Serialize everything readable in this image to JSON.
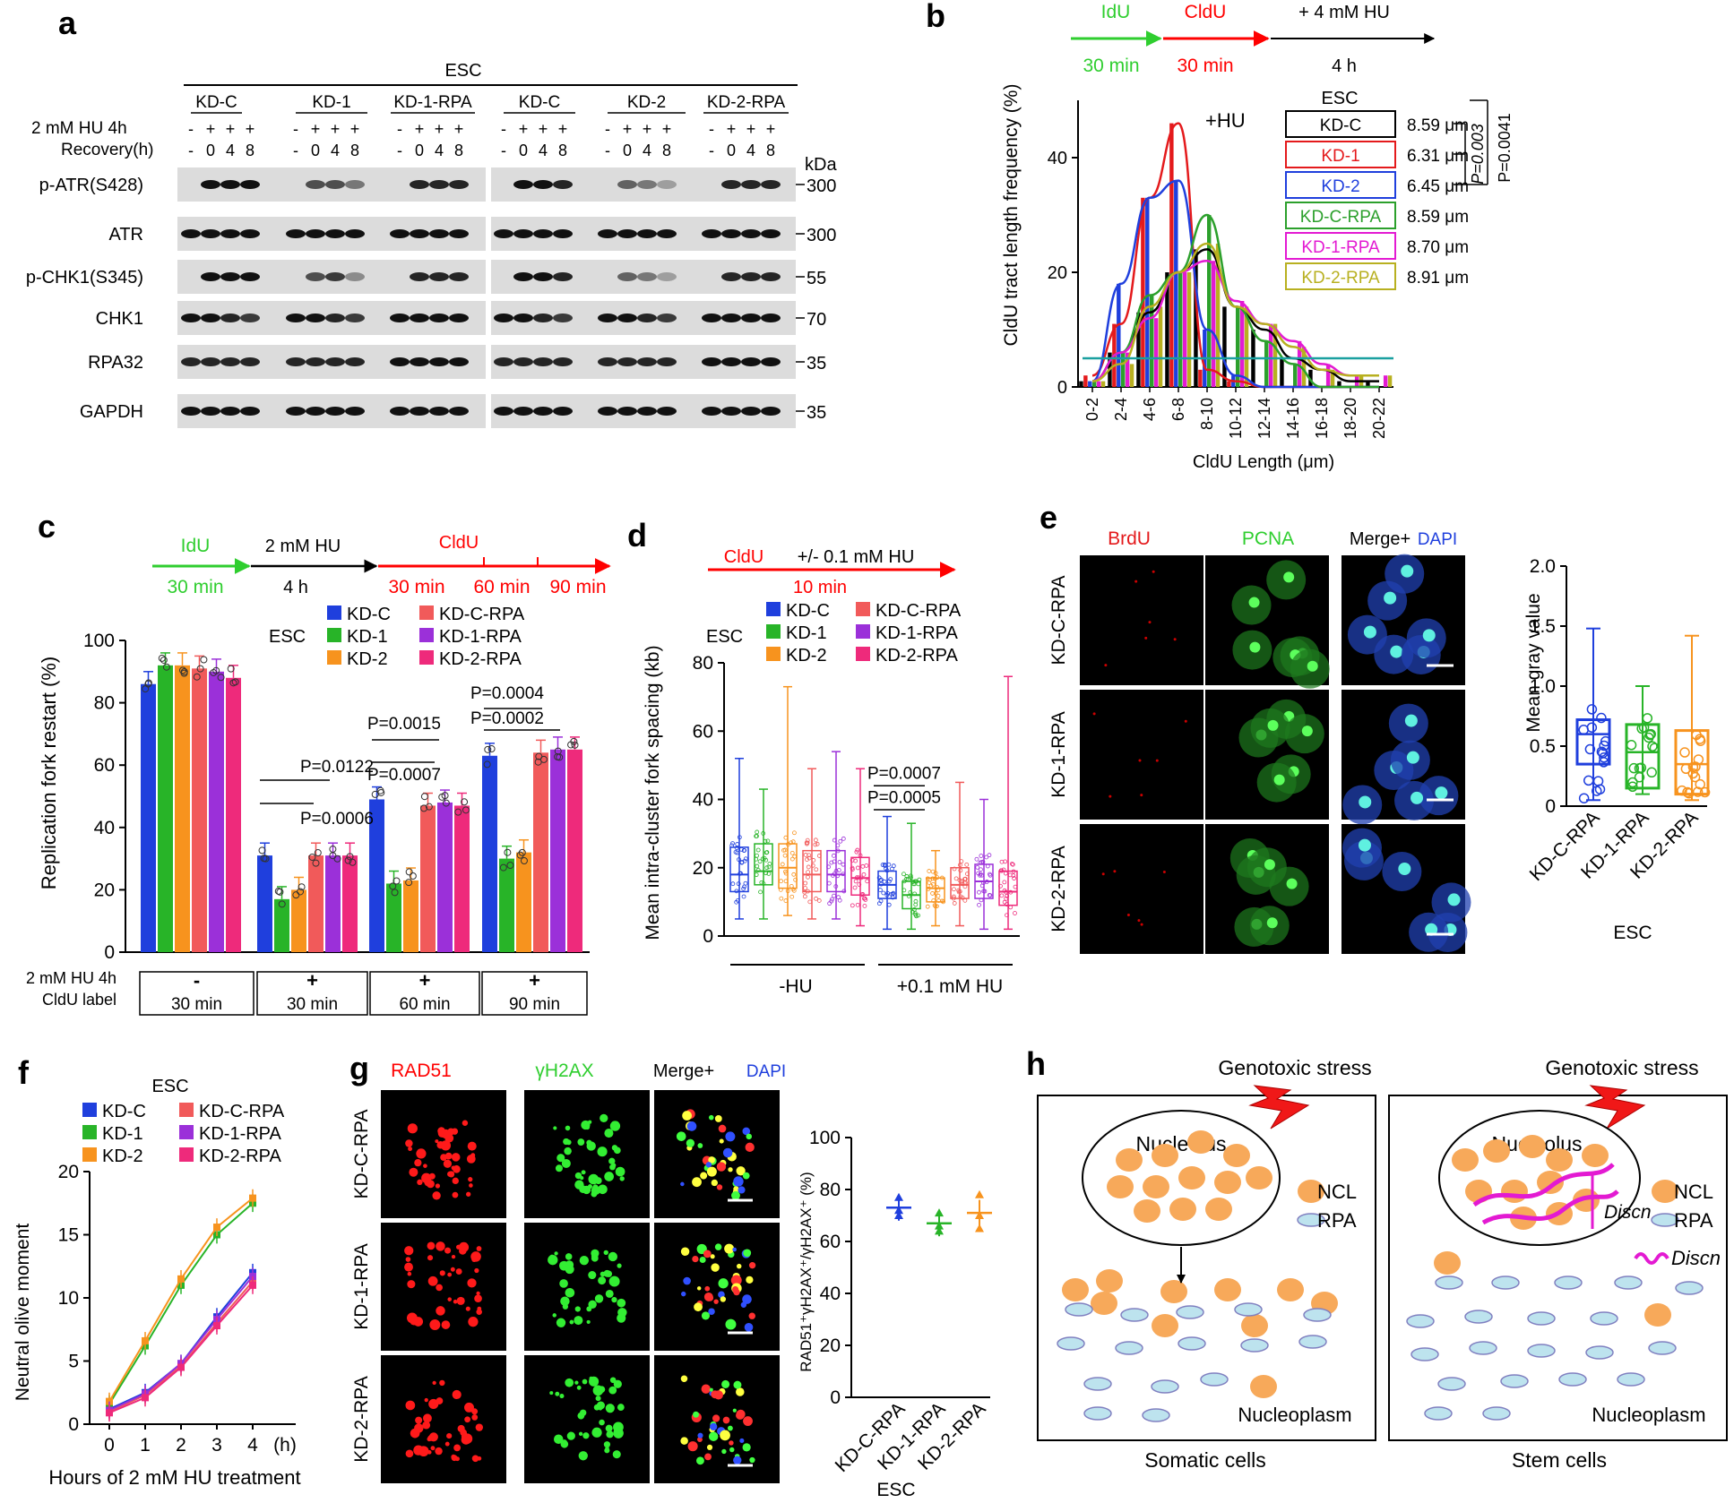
{
  "panel_letters": [
    "a",
    "b",
    "c",
    "d",
    "e",
    "f",
    "g",
    "h"
  ],
  "panel_a": {
    "esc": "ESC",
    "groups": [
      "KD-C",
      "KD-1",
      "KD-1-RPA",
      "KD-C",
      "KD-2",
      "KD-2-RPA"
    ],
    "hu_label": "2 mM HU 4h",
    "recovery_label": "Recovery(h)",
    "hu_signs": [
      "-",
      "+",
      "+",
      "+"
    ],
    "recovery_values": [
      "-",
      "0",
      "4",
      "8"
    ],
    "kda": "kDa",
    "rows": [
      "p-ATR(S428)",
      "ATR",
      "p-CHK1(S345)",
      "CHK1",
      "RPA32",
      "GAPDH"
    ],
    "markers": [
      "300",
      "300",
      "55",
      "70",
      "35",
      "35"
    ]
  },
  "panel_b": {
    "scheme": {
      "idu": "IdU",
      "cldu": "CldU",
      "hu": "+ 4 mM HU",
      "idu_time": "30 min",
      "cldu_time": "30 min",
      "hu_time": "4 h"
    },
    "chart_data": {
      "type": "bar",
      "title": "+HU",
      "ylabel": "CldU tract length frequency (%)",
      "xlabel": "CldU Length (μm)",
      "ylim": [
        0,
        50
      ],
      "yticks": [
        0,
        20,
        40
      ],
      "categories": [
        "0-2",
        "2-4",
        "4-6",
        "6-8",
        "8-10",
        "10-12",
        "12-14",
        "14-16",
        "16-18",
        "18-20",
        "20-22"
      ],
      "series": [
        {
          "name": "KD-C",
          "color": "#000000",
          "mean": "8.59 μm",
          "values": [
            1,
            6,
            13,
            20,
            24,
            14,
            10,
            5,
            3,
            1,
            1
          ]
        },
        {
          "name": "KD-1",
          "color": "#e41a1c",
          "mean": "6.31 μm",
          "values": [
            2,
            11,
            33,
            46,
            3,
            1,
            0,
            0,
            0,
            0,
            0
          ]
        },
        {
          "name": "KD-2",
          "color": "#1f3fdd",
          "mean": "6.45 μm",
          "values": [
            1,
            18,
            33,
            36,
            10,
            2,
            0,
            0,
            0,
            0,
            0
          ]
        },
        {
          "name": "KD-C-RPA",
          "color": "#2ca02c",
          "mean": "8.59 μm",
          "values": [
            1,
            6,
            16,
            20,
            30,
            14,
            8,
            4,
            0,
            0,
            0
          ]
        },
        {
          "name": "KD-1-RPA",
          "color": "#e31ad2",
          "mean": "8.70 μm",
          "values": [
            1,
            6,
            12,
            20,
            22,
            15,
            11,
            8,
            4,
            2,
            2
          ]
        },
        {
          "name": "KD-2-RPA",
          "color": "#b8b020",
          "mean": "8.91 μm",
          "values": [
            1,
            4,
            14,
            20,
            25,
            14,
            11,
            7,
            3,
            2,
            2
          ]
        }
      ],
      "legend_title": "ESC",
      "p_values": [
        "P=0.003",
        "P=0.0041"
      ]
    }
  },
  "panel_c": {
    "scheme": {
      "idu": "IdU",
      "hu": "2 mM HU",
      "cldu": "CldU",
      "idu_time": "30 min",
      "hu_time": "4 h",
      "t1": "30 min",
      "t2": "60 min",
      "t3": "90 min"
    },
    "chart_data": {
      "type": "bar",
      "ylabel": "Replication fork restart (%)",
      "ylim": [
        0,
        100
      ],
      "yticks": [
        0,
        20,
        40,
        60,
        80,
        100
      ],
      "groups": [
        "30 min",
        "30 min",
        "60 min",
        "90 min"
      ],
      "group_signs": [
        "-",
        "+",
        "+",
        "+"
      ],
      "row_labels": [
        "2 mM HU 4h",
        "CldU label"
      ],
      "series": [
        {
          "name": "KD-C",
          "color": "#1f3fdd",
          "values": [
            86,
            31,
            49,
            63
          ]
        },
        {
          "name": "KD-1",
          "color": "#28b428",
          "values": [
            92,
            17,
            22,
            30
          ]
        },
        {
          "name": "KD-2",
          "color": "#f7931e",
          "values": [
            92,
            20,
            23,
            32
          ]
        },
        {
          "name": "KD-C-RPA",
          "color": "#f15a5a",
          "values": [
            91,
            31,
            47,
            64
          ]
        },
        {
          "name": "KD-1-RPA",
          "color": "#9b30d9",
          "values": [
            90,
            31,
            48,
            65
          ]
        },
        {
          "name": "KD-2-RPA",
          "color": "#ee2a7b",
          "values": [
            88,
            31,
            47,
            65
          ]
        }
      ],
      "legend_title": "ESC",
      "p_values": [
        "P=0.0122",
        "P=0.0006",
        "P=0.0015",
        "P=0.0007",
        "P=0.0004",
        "P=0.0002"
      ]
    }
  },
  "panel_d": {
    "scheme": {
      "cldu": "CldU",
      "hu": "+/- 0.1 mM HU",
      "time": "10 min"
    },
    "chart_data": {
      "type": "box",
      "ylabel": "Mean intra-cluster fork spacing (kb)",
      "ylim": [
        0,
        80
      ],
      "yticks": [
        0,
        20,
        40,
        60,
        80
      ],
      "conditions": [
        "-HU",
        "+0.1 mM HU"
      ],
      "series": [
        {
          "name": "KD-C",
          "color": "#1f3fdd",
          "min": [
            5,
            2
          ],
          "q1": [
            13,
            11
          ],
          "median": [
            18,
            15
          ],
          "q3": [
            26,
            19
          ],
          "max": [
            52,
            35
          ]
        },
        {
          "name": "KD-1",
          "color": "#28b428",
          "min": [
            5,
            2
          ],
          "q1": [
            15,
            8
          ],
          "median": [
            19,
            12
          ],
          "q3": [
            27,
            16
          ],
          "max": [
            43,
            33
          ]
        },
        {
          "name": "KD-2",
          "color": "#f7931e",
          "min": [
            6,
            3
          ],
          "q1": [
            14,
            10
          ],
          "median": [
            20,
            14
          ],
          "q3": [
            27,
            17
          ],
          "max": [
            73,
            25
          ]
        },
        {
          "name": "KD-C-RPA",
          "color": "#f15a5a",
          "min": [
            5,
            3
          ],
          "q1": [
            13,
            11
          ],
          "median": [
            18,
            15
          ],
          "q3": [
            25,
            20
          ],
          "max": [
            49,
            45
          ]
        },
        {
          "name": "KD-1-RPA",
          "color": "#9b30d9",
          "min": [
            5,
            2
          ],
          "q1": [
            13,
            11
          ],
          "median": [
            18,
            16
          ],
          "q3": [
            25,
            21
          ],
          "max": [
            54,
            40
          ]
        },
        {
          "name": "KD-2-RPA",
          "color": "#ee2a7b",
          "min": [
            3,
            2
          ],
          "q1": [
            12,
            9
          ],
          "median": [
            17,
            13
          ],
          "q3": [
            23,
            19
          ],
          "max": [
            49,
            76
          ]
        }
      ],
      "legend_title": "ESC",
      "p_values": [
        "P=0.0007",
        "P=0.0005"
      ]
    }
  },
  "panel_e": {
    "channels": [
      "BrdU",
      "PCNA",
      "Merge+",
      "DAPI"
    ],
    "rows": [
      "KD-C-RPA",
      "KD-1-RPA",
      "KD-2-RPA"
    ],
    "chart_data": {
      "type": "box",
      "ylabel": "Mean gray value",
      "xlabel": "ESC",
      "ylim": [
        0,
        2.0
      ],
      "yticks": [
        "0",
        "0.5",
        "1.0",
        "1.5",
        "2.0"
      ],
      "categories": [
        "KD-C-RPA",
        "KD-1-RPA",
        "KD-2-RPA"
      ],
      "colors": [
        "#1f3fdd",
        "#28b428",
        "#f7931e"
      ],
      "min": [
        0.05,
        0.1,
        0.05
      ],
      "q1": [
        0.35,
        0.15,
        0.1
      ],
      "median": [
        0.6,
        0.45,
        0.35
      ],
      "q3": [
        0.72,
        0.68,
        0.63
      ],
      "max": [
        1.48,
        1.0,
        1.42
      ]
    }
  },
  "panel_f": {
    "chart_data": {
      "type": "line",
      "ylabel": "Neutral olive moment",
      "xlabel": "Hours of 2 mM HU treatment",
      "x": [
        0,
        1,
        2,
        3,
        4
      ],
      "xticks": [
        "0",
        "1",
        "2",
        "3",
        "4",
        "(h)"
      ],
      "ylim": [
        0,
        20
      ],
      "yticks": [
        0,
        5,
        10,
        15,
        20
      ],
      "legend_title": "ESC",
      "series": [
        {
          "name": "KD-C",
          "color": "#1f3fdd",
          "values": [
            1.2,
            2.5,
            4.8,
            8.5,
            12.0
          ]
        },
        {
          "name": "KD-1",
          "color": "#28b428",
          "values": [
            1.6,
            6.2,
            11.0,
            15.0,
            17.5
          ]
        },
        {
          "name": "KD-2",
          "color": "#f7931e",
          "values": [
            1.8,
            6.6,
            11.5,
            15.6,
            17.9
          ]
        },
        {
          "name": "KD-C-RPA",
          "color": "#f15a5a",
          "values": [
            1.0,
            2.3,
            4.6,
            8.0,
            11.3
          ]
        },
        {
          "name": "KD-1-RPA",
          "color": "#9b30d9",
          "values": [
            1.1,
            2.4,
            4.8,
            8.3,
            11.7
          ]
        },
        {
          "name": "KD-2-RPA",
          "color": "#ee2a7b",
          "values": [
            0.9,
            2.1,
            4.5,
            7.8,
            11.0
          ]
        }
      ]
    }
  },
  "panel_g": {
    "channels": [
      "RAD51",
      "γH2AX",
      "Merge+",
      "DAPI"
    ],
    "rows": [
      "KD-C-RPA",
      "KD-1-RPA",
      "KD-2-RPA"
    ],
    "chart_data": {
      "type": "scatter",
      "ylabel": "RAD51⁺γH2AX⁺/γH2AX⁺ (%)",
      "xlabel": "ESC",
      "ylim": [
        0,
        100
      ],
      "yticks": [
        0,
        20,
        40,
        60,
        80,
        100
      ],
      "categories": [
        "KD-C-RPA",
        "KD-1-RPA",
        "KD-2-RPA"
      ],
      "colors": [
        "#1f3fdd",
        "#28b428",
        "#f7931e"
      ],
      "means": [
        73,
        67,
        71
      ],
      "points": [
        [
          77,
          72,
          70
        ],
        [
          71,
          66,
          64
        ],
        [
          78,
          70,
          65
        ]
      ]
    }
  },
  "panel_h": {
    "left": {
      "stress": "Genotoxic stress",
      "nucleolus": "Nucleolus",
      "ncl": "NCL",
      "rpa": "RPA",
      "nucleoplasm": "Nucleoplasm",
      "caption": "Somatic cells"
    },
    "right": {
      "stress": "Genotoxic stress",
      "nucleolus": "Nucleolus",
      "ncl": "NCL",
      "rpa": "RPA",
      "discn1": "Discn",
      "discn2": "Discn",
      "nucleoplasm": "Nucleoplasm",
      "caption": "Stem cells"
    }
  }
}
